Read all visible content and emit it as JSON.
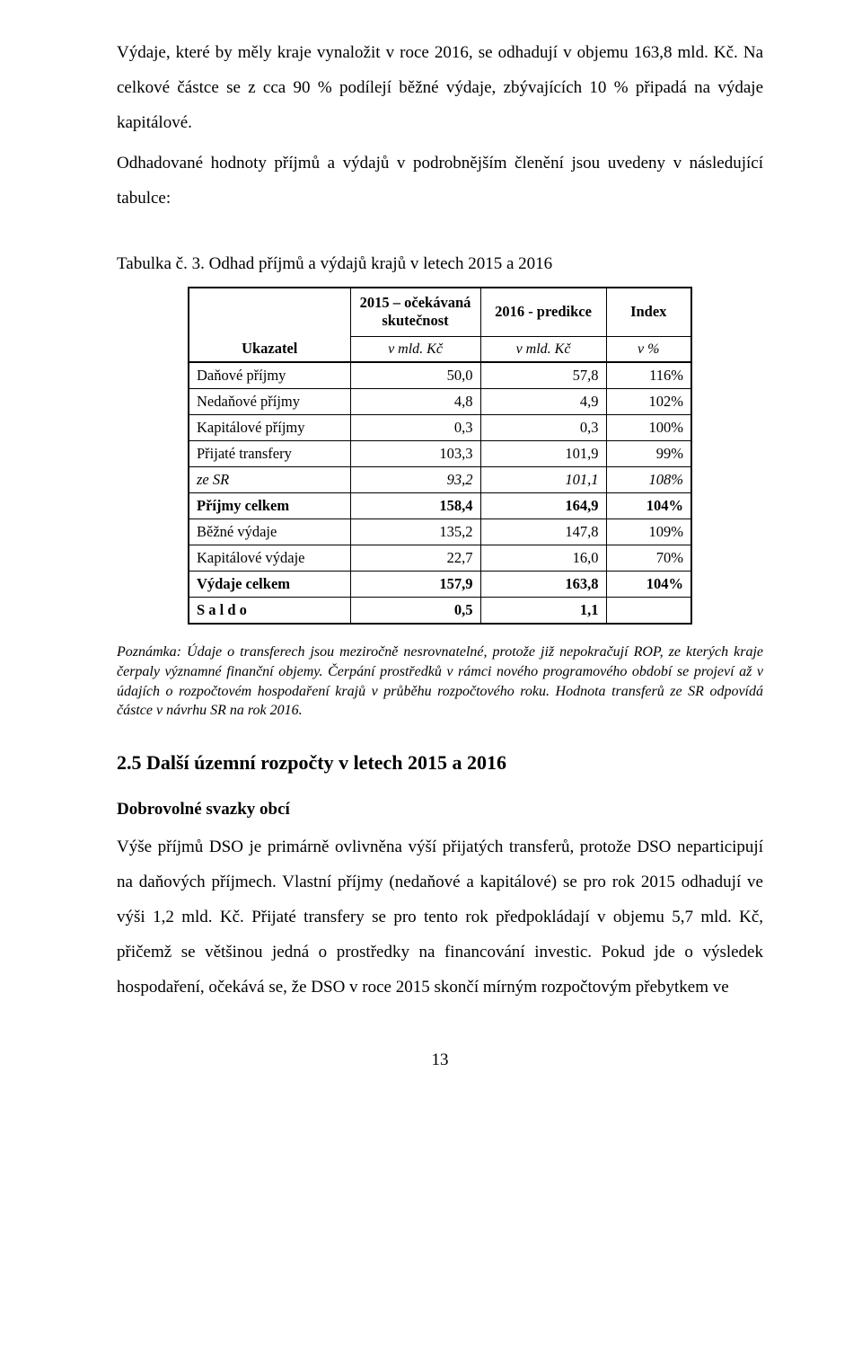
{
  "paragraph1": "Výdaje, které by měly kraje vynaložit v roce 2016, se odhadují v objemu 163,8 mld. Kč. Na celkové částce se z cca 90 % podílejí běžné výdaje, zbývajících 10 % připadá na výdaje kapitálové.",
  "paragraph2": "Odhadované hodnoty příjmů a výdajů v podrobnějším členění jsou uvedeny v následující tabulce:",
  "table_caption": "Tabulka č. 3. Odhad příjmů a výdajů krajů v letech 2015 a 2016",
  "table": {
    "headers": {
      "col1_line1": "2015 – očekávaná",
      "col1_line2": "skutečnost",
      "col2": "2016 - predikce",
      "col3": "Index",
      "ukazatel": "Ukazatel",
      "unit1": "v mld. Kč",
      "unit2": "v mld. Kč",
      "unit3": "v %"
    },
    "rows": [
      {
        "label": "Daňové příjmy",
        "c1": "50,0",
        "c2": "57,8",
        "c3": "116%",
        "bold": false,
        "italic": false
      },
      {
        "label": "Nedaňové příjmy",
        "c1": "4,8",
        "c2": "4,9",
        "c3": "102%",
        "bold": false,
        "italic": false
      },
      {
        "label": "Kapitálové příjmy",
        "c1": "0,3",
        "c2": "0,3",
        "c3": "100%",
        "bold": false,
        "italic": false
      },
      {
        "label": "Přijaté transfery",
        "c1": "103,3",
        "c2": "101,9",
        "c3": "99%",
        "bold": false,
        "italic": false
      },
      {
        "label": "ze SR",
        "c1": "93,2",
        "c2": "101,1",
        "c3": "108%",
        "bold": false,
        "italic": true
      },
      {
        "label": "Příjmy celkem",
        "c1": "158,4",
        "c2": "164,9",
        "c3": "104%",
        "bold": true,
        "italic": false
      },
      {
        "label": "Běžné výdaje",
        "c1": "135,2",
        "c2": "147,8",
        "c3": "109%",
        "bold": false,
        "italic": false
      },
      {
        "label": "Kapitálové výdaje",
        "c1": "22,7",
        "c2": "16,0",
        "c3": "70%",
        "bold": false,
        "italic": false
      },
      {
        "label": "Výdaje celkem",
        "c1": "157,9",
        "c2": "163,8",
        "c3": "104%",
        "bold": true,
        "italic": false
      },
      {
        "label": "S a l d o",
        "c1": "0,5",
        "c2": "1,1",
        "c3": "",
        "bold": true,
        "italic": false,
        "spaced": true
      }
    ]
  },
  "note": "Poznámka: Údaje o transferech jsou meziročně nesrovnatelné, protože již nepokračují ROP, ze kterých kraje čerpaly významné finanční objemy. Čerpání prostředků v rámci nového programového období se projeví až v údajích o rozpočtovém hospodaření krajů v průběhu rozpočtového roku. Hodnota transferů ze SR odpovídá částce v návrhu SR na rok 2016.",
  "section_heading": "2.5  Další územní rozpočty v letech 2015 a 2016",
  "sub_heading": "Dobrovolné svazky obcí",
  "paragraph3": "Výše příjmů DSO je primárně ovlivněna výší přijatých transferů, protože DSO neparticipují na daňových příjmech. Vlastní příjmy (nedaňové a kapitálové) se pro rok 2015 odhadují ve výši 1,2 mld. Kč. Přijaté transfery se pro tento rok předpokládají v objemu 5,7 mld. Kč, přičemž se většinou jedná o prostředky na financování investic. Pokud jde o výsledek hospodaření, očekává se, že DSO v roce 2015 skončí mírným rozpočtovým přebytkem ve",
  "page_number": "13"
}
